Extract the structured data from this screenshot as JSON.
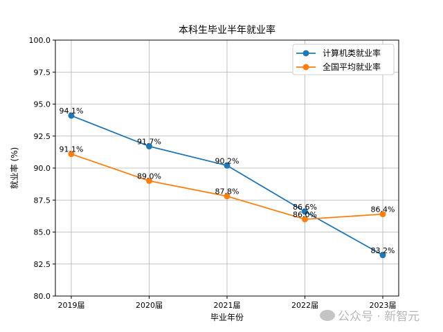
{
  "chart_data": {
    "type": "line",
    "title": "本科生毕业半年就业率",
    "xlabel": "毕业年份",
    "ylabel": "就业率 (%)",
    "categories": [
      "2019届",
      "2020届",
      "2021届",
      "2022届",
      "2023届"
    ],
    "ylim": [
      80,
      100
    ],
    "yticks": [
      "80.0",
      "82.5",
      "85.0",
      "87.5",
      "90.0",
      "92.5",
      "95.0",
      "97.5",
      "100.0"
    ],
    "grid": true,
    "legend": "top-right",
    "series": [
      {
        "name": "计算机类就业率",
        "values": [
          94.1,
          91.7,
          90.2,
          86.6,
          83.2
        ],
        "labels": [
          "94.1%",
          "91.7%",
          "90.2%",
          "86.6%",
          "83.2%"
        ],
        "color": "#1f77b4"
      },
      {
        "name": "全国平均就业率",
        "values": [
          91.1,
          89.0,
          87.8,
          86.0,
          86.4
        ],
        "labels": [
          "91.1%",
          "89.0%",
          "87.8%",
          "86.0%",
          "86.4%"
        ],
        "color": "#ff7f0e"
      }
    ]
  },
  "watermark": "公众号 · 新智元"
}
